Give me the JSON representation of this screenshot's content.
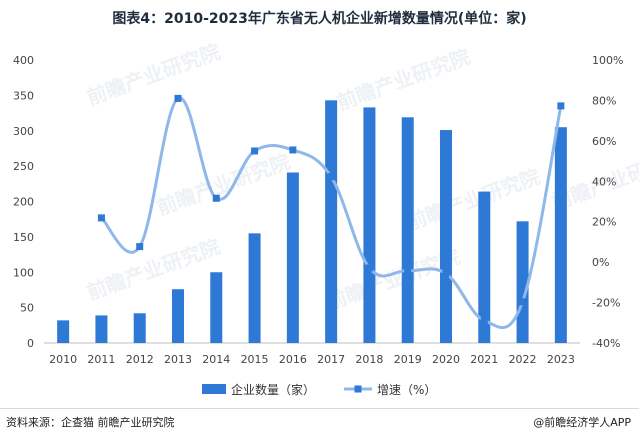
{
  "title": "图表4：2010-2023年广东省无人机企业新增数量情况(单位：家)",
  "source": "资料来源：企查猫 前瞻产业研究院",
  "publisher": "@前瞻经济学人APP",
  "watermark": "前瞻产业研究院",
  "colors": {
    "bar": "#2e78d6",
    "line": "#8fb8ea",
    "axis_text": "#444444",
    "grid": "#e6e6e6"
  },
  "chart_data": {
    "type": "bar",
    "categories": [
      "2010",
      "2011",
      "2012",
      "2013",
      "2014",
      "2015",
      "2016",
      "2017",
      "2018",
      "2019",
      "2020",
      "2021",
      "2022",
      "2023"
    ],
    "series": [
      {
        "name": "企业数量（家）",
        "type": "bar",
        "axis": "left",
        "values": [
          32,
          39,
          42,
          76,
          100,
          155,
          241,
          343,
          333,
          319,
          301,
          214,
          172,
          305
        ]
      },
      {
        "name": "增速（%）",
        "type": "line",
        "axis": "right",
        "values": [
          null,
          21.9,
          7.7,
          81.0,
          31.6,
          55.0,
          55.5,
          42.3,
          -2.9,
          -4.2,
          -5.6,
          -28.9,
          -19.6,
          77.3
        ]
      }
    ],
    "ylim_left": [
      0,
      400
    ],
    "yticks_left": [
      "0",
      "50",
      "100",
      "150",
      "200",
      "250",
      "300",
      "350",
      "400"
    ],
    "ylim_right": [
      -40,
      100
    ],
    "yticks_right": [
      "-40%",
      "-20%",
      "0%",
      "20%",
      "40%",
      "60%",
      "80%",
      "100%"
    ],
    "legend": "bottom-center",
    "grid": false
  }
}
